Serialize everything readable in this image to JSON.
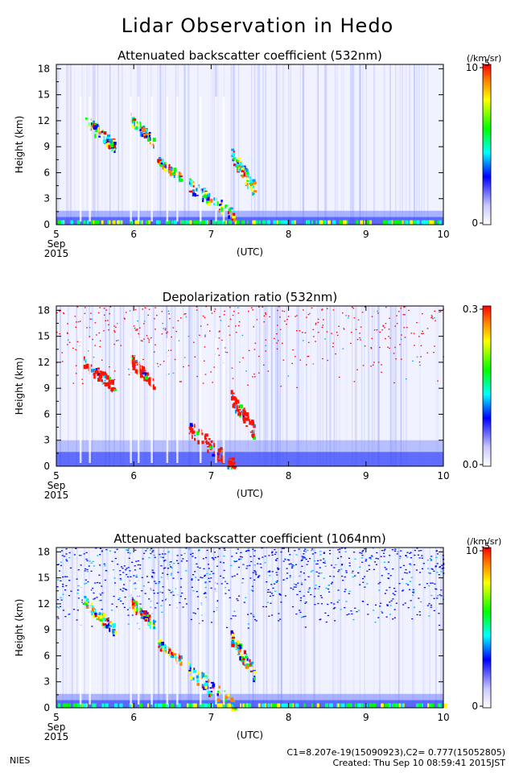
{
  "title": "Lidar Observation in Hedo",
  "footer": {
    "left": "NIES",
    "constants": "C1=8.207e-19(15090923),C2= 0.777(15052805)",
    "created": "Created: Thu Sep 10 08:59:41 2015JST"
  },
  "chart_data": [
    {
      "type": "heatmap",
      "title": "Attenuated backscatter coefficient (532nm)",
      "ylabel": "Height (km)",
      "xlabel": "(UTC)",
      "x_ticks": [
        "5",
        "6",
        "7",
        "8",
        "9",
        "10"
      ],
      "x_sublabel": [
        "Sep",
        "2015"
      ],
      "y_ticks": [
        "0",
        "3",
        "6",
        "9",
        "12",
        "15",
        "18"
      ],
      "xlim": [
        5,
        10
      ],
      "ylim": [
        0,
        18.5
      ],
      "colorbar": {
        "unit": "(/km/sr)",
        "max_label": "10",
        "max_exponent": "-5",
        "min_label": "0"
      },
      "features": [
        {
          "kind": "boundary_layer",
          "top_km": 1.6
        },
        {
          "kind": "cloud",
          "x": [
            5.35,
            5.75
          ],
          "y": [
            9,
            13
          ]
        },
        {
          "kind": "cloud",
          "x": [
            5.95,
            6.25
          ],
          "y": [
            9.5,
            13
          ]
        },
        {
          "kind": "cloud",
          "x": [
            6.3,
            6.6
          ],
          "y": [
            5.5,
            8
          ]
        },
        {
          "kind": "cloud",
          "x": [
            6.7,
            7.3
          ],
          "y": [
            1,
            5.5
          ]
        },
        {
          "kind": "cloud",
          "x": [
            7.25,
            7.55
          ],
          "y": [
            4,
            9
          ]
        }
      ]
    },
    {
      "type": "heatmap",
      "title": "Depolarization ratio (532nm)",
      "ylabel": "Height (km)",
      "xlabel": "(UTC)",
      "x_ticks": [
        "5",
        "6",
        "7",
        "8",
        "9",
        "10"
      ],
      "x_sublabel": [
        "Sep",
        "2015"
      ],
      "y_ticks": [
        "0",
        "3",
        "6",
        "9",
        "12",
        "15",
        "18"
      ],
      "xlim": [
        5,
        10
      ],
      "ylim": [
        0,
        18.5
      ],
      "colorbar": {
        "unit": "",
        "max_label": "0.3",
        "max_exponent": "",
        "min_label": "0.0"
      },
      "features": [
        {
          "kind": "boundary_layer",
          "top_km": 3
        },
        {
          "kind": "cloud",
          "x": [
            5.35,
            5.75
          ],
          "y": [
            9,
            13
          ]
        },
        {
          "kind": "cloud",
          "x": [
            5.95,
            6.25
          ],
          "y": [
            9.5,
            13
          ]
        },
        {
          "kind": "cloud",
          "x": [
            6.7,
            7.3
          ],
          "y": [
            0,
            5.5
          ]
        },
        {
          "kind": "cloud",
          "x": [
            7.25,
            7.55
          ],
          "y": [
            4,
            9
          ]
        },
        {
          "kind": "noise_upper",
          "y": [
            9,
            18.5
          ]
        }
      ]
    },
    {
      "type": "heatmap",
      "title": "Attenuated backscatter coefficient (1064nm)",
      "ylabel": "Height (km)",
      "xlabel": "(UTC)",
      "x_ticks": [
        "5",
        "6",
        "7",
        "8",
        "9",
        "10"
      ],
      "x_sublabel": [
        "Sep",
        "2015"
      ],
      "y_ticks": [
        "0",
        "3",
        "6",
        "9",
        "12",
        "15",
        "18"
      ],
      "xlim": [
        5,
        10
      ],
      "ylim": [
        0,
        18.5
      ],
      "colorbar": {
        "unit": "(/km/sr)",
        "max_label": "10",
        "max_exponent": "-5",
        "min_label": "0"
      },
      "features": [
        {
          "kind": "boundary_layer",
          "top_km": 1.6
        },
        {
          "kind": "cloud",
          "x": [
            5.35,
            5.75
          ],
          "y": [
            9,
            13
          ]
        },
        {
          "kind": "cloud",
          "x": [
            5.95,
            6.25
          ],
          "y": [
            9.5,
            13
          ]
        },
        {
          "kind": "cloud",
          "x": [
            6.3,
            6.6
          ],
          "y": [
            5.5,
            8
          ]
        },
        {
          "kind": "cloud",
          "x": [
            6.7,
            7.3
          ],
          "y": [
            0,
            5.5
          ]
        },
        {
          "kind": "cloud",
          "x": [
            7.25,
            7.55
          ],
          "y": [
            4,
            9
          ]
        },
        {
          "kind": "noise_upper",
          "y": [
            9,
            18.5
          ]
        }
      ]
    }
  ]
}
